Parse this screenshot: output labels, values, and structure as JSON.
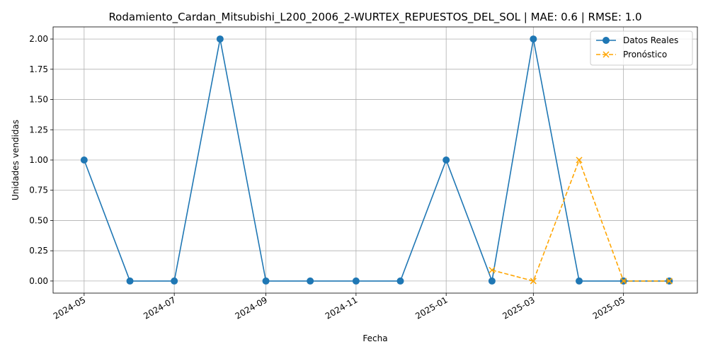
{
  "chart_data": {
    "type": "line",
    "title": "Rodamiento_Cardan_Mitsubishi_L200_2006_2-WURTEX_REPUESTOS_DEL_SOL | MAE: 0.6 | RMSE: 1.0",
    "xlabel": "Fecha",
    "ylabel": "Unidades vendidas",
    "xlim": [
      "2024-04-10",
      "2025-06-20"
    ],
    "ylim": [
      -0.1,
      2.1
    ],
    "x_ticks": [
      "2024-05",
      "2024-07",
      "2024-09",
      "2024-11",
      "2025-01",
      "2025-03",
      "2025-05"
    ],
    "y_ticks": [
      "0.00",
      "0.25",
      "0.50",
      "0.75",
      "1.00",
      "1.25",
      "1.50",
      "1.75",
      "2.00"
    ],
    "grid": true,
    "legend_position": "top-right",
    "series": [
      {
        "name": "Datos Reales",
        "color": "#1f77b4",
        "marker": "circle",
        "linestyle": "solid",
        "x": [
          "2024-05-01",
          "2024-06-01",
          "2024-07-01",
          "2024-08-01",
          "2024-09-01",
          "2024-10-01",
          "2024-11-01",
          "2024-12-01",
          "2025-01-01",
          "2025-02-01",
          "2025-03-01",
          "2025-04-01",
          "2025-05-01",
          "2025-06-01"
        ],
        "values": [
          1,
          0,
          0,
          2,
          0,
          0,
          0,
          0,
          1,
          0,
          2,
          0,
          0,
          0
        ]
      },
      {
        "name": "Pronóstico",
        "color": "#ffa500",
        "marker": "x",
        "linestyle": "dashed",
        "x": [
          "2025-02-01",
          "2025-03-01",
          "2025-04-01",
          "2025-05-01",
          "2025-06-01"
        ],
        "values": [
          0.09,
          0.0,
          1.0,
          0.0,
          0.0
        ]
      }
    ]
  }
}
